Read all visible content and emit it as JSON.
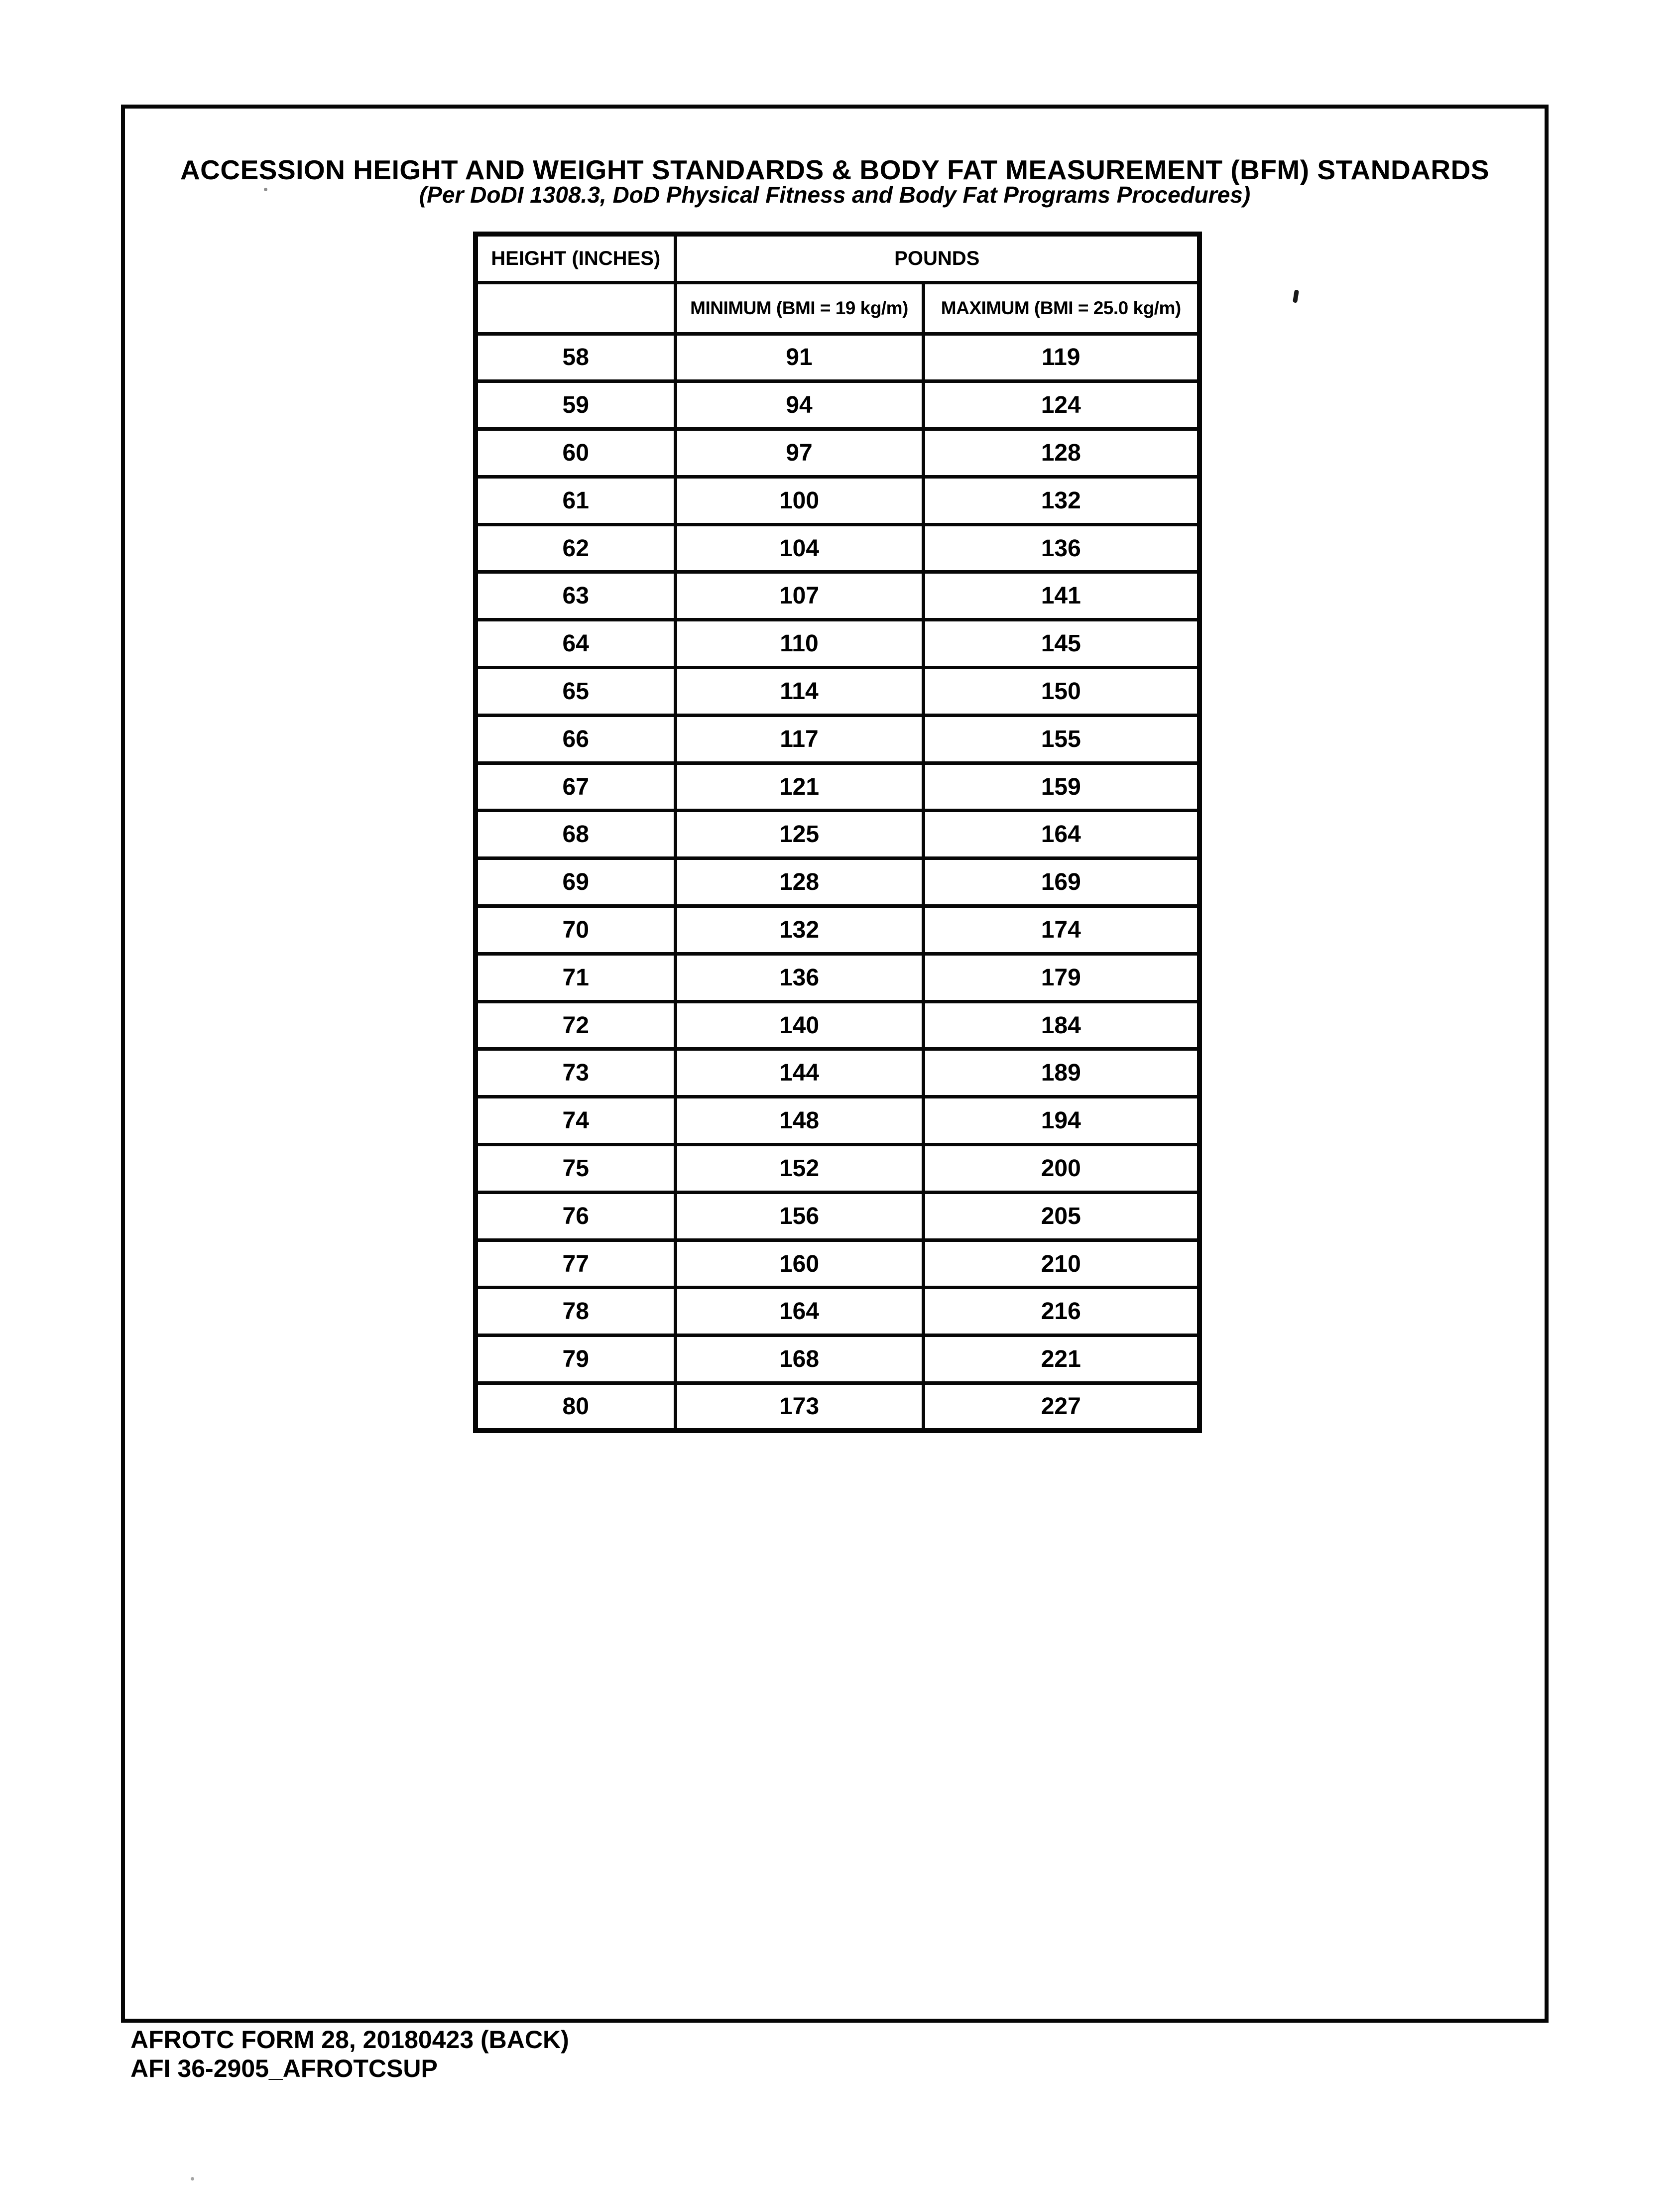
{
  "page": {
    "title": "ACCESSION HEIGHT AND WEIGHT STANDARDS & BODY FAT MEASUREMENT (BFM) STANDARDS",
    "subtitle": "(Per DoDI 1308.3, DoD Physical Fitness and Body Fat Programs Procedures)"
  },
  "table": {
    "col1_header": "HEIGHT (INCHES)",
    "pounds_header": "POUNDS",
    "min_header": "MINIMUM (BMI = 19 kg/m)",
    "max_header": "MAXIMUM (BMI = 25.0 kg/m)",
    "rows": [
      {
        "height": "58",
        "min": "91",
        "max": "119"
      },
      {
        "height": "59",
        "min": "94",
        "max": "124"
      },
      {
        "height": "60",
        "min": "97",
        "max": "128"
      },
      {
        "height": "61",
        "min": "100",
        "max": "132"
      },
      {
        "height": "62",
        "min": "104",
        "max": "136"
      },
      {
        "height": "63",
        "min": "107",
        "max": "141"
      },
      {
        "height": "64",
        "min": "110",
        "max": "145"
      },
      {
        "height": "65",
        "min": "114",
        "max": "150"
      },
      {
        "height": "66",
        "min": "117",
        "max": "155"
      },
      {
        "height": "67",
        "min": "121",
        "max": "159"
      },
      {
        "height": "68",
        "min": "125",
        "max": "164"
      },
      {
        "height": "69",
        "min": "128",
        "max": "169"
      },
      {
        "height": "70",
        "min": "132",
        "max": "174"
      },
      {
        "height": "71",
        "min": "136",
        "max": "179"
      },
      {
        "height": "72",
        "min": "140",
        "max": "184"
      },
      {
        "height": "73",
        "min": "144",
        "max": "189"
      },
      {
        "height": "74",
        "min": "148",
        "max": "194"
      },
      {
        "height": "75",
        "min": "152",
        "max": "200"
      },
      {
        "height": "76",
        "min": "156",
        "max": "205"
      },
      {
        "height": "77",
        "min": "160",
        "max": "210"
      },
      {
        "height": "78",
        "min": "164",
        "max": "216"
      },
      {
        "height": "79",
        "min": "168",
        "max": "221"
      },
      {
        "height": "80",
        "min": "173",
        "max": "227"
      }
    ]
  },
  "footer": {
    "line1": "AFROTC FORM 28, 20180423 (BACK)",
    "line2": "AFI 36-2905_AFROTCSUP"
  },
  "colors": {
    "ink": "#000000",
    "paper": "#ffffff"
  }
}
